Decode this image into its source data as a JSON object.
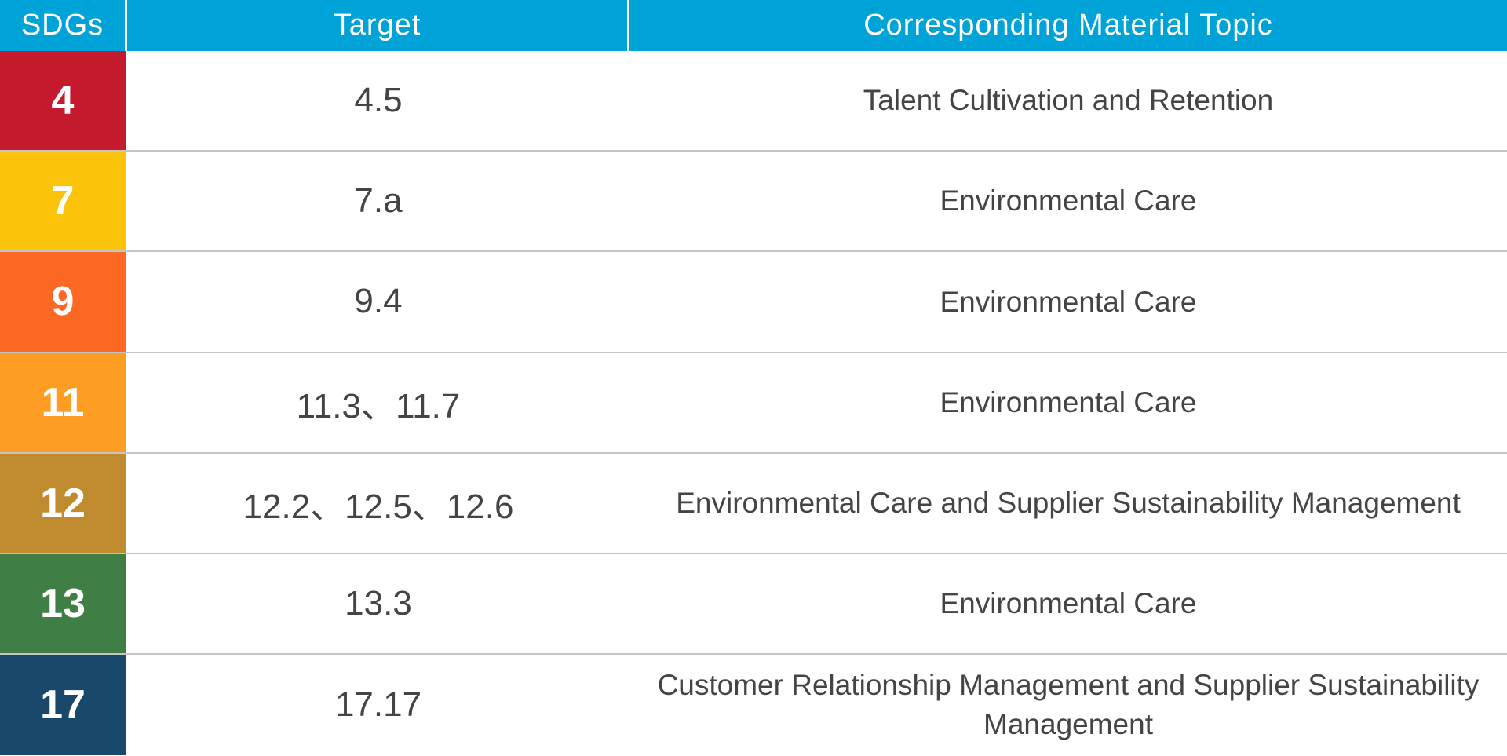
{
  "colors": {
    "header_bg": "#00a3d8",
    "header_text": "#ffffff",
    "body_text": "#444444",
    "divider": "#c4c4c4"
  },
  "header": {
    "sdgs": "SDGs",
    "target": "Target",
    "topic": "Corresponding Material Topic"
  },
  "rows": [
    {
      "sdg": "4",
      "color": "#c5192d",
      "target": "4.5",
      "topic": "Talent Cultivation and Retention"
    },
    {
      "sdg": "7",
      "color": "#fcc30b",
      "target": "7.a",
      "topic": "Environmental Care"
    },
    {
      "sdg": "9",
      "color": "#fd6925",
      "target": "9.4",
      "topic": "Environmental Care"
    },
    {
      "sdg": "11",
      "color": "#fd9d24",
      "target": "11.3、11.7",
      "topic": "Environmental Care"
    },
    {
      "sdg": "12",
      "color": "#bf8b2e",
      "target": "12.2、12.5、12.6",
      "topic": "Environmental Care and Supplier Sustainability Management"
    },
    {
      "sdg": "13",
      "color": "#3f7e44",
      "target": "13.3",
      "topic": "Environmental Care"
    },
    {
      "sdg": "17",
      "color": "#19486a",
      "target": "17.17",
      "topic": "Customer Relationship Management and Supplier Sustainability Management"
    }
  ]
}
